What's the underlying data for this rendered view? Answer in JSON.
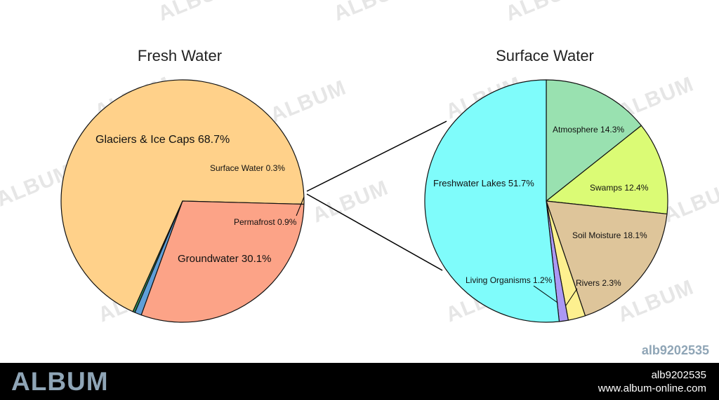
{
  "watermark": {
    "text": "ALBUM",
    "image_id": "alb9202535",
    "footer_logo": "ALBUM",
    "footer_id": "alb9202535",
    "footer_url": "www.album-online.com"
  },
  "colors": {
    "glaciers": "#ffd18a",
    "groundwater": "#fca387",
    "permafrost": "#5f9fd8",
    "surface_water": "#2e8b57",
    "freshwater_lakes": "#7ffcfb",
    "atmosphere": "#99e1b0",
    "swamps": "#dbfb75",
    "soil_moisture": "#dec59a",
    "rivers": "#fdf08f",
    "living_organisms": "#ab98f4"
  },
  "chart_data": [
    {
      "type": "pie",
      "title": "Fresh Water",
      "slices": [
        {
          "label": "Glaciers & Ice Caps",
          "value": 68.7,
          "text": "Glaciers & Ice Caps 68.7%",
          "color": "#ffd18a"
        },
        {
          "label": "Surface Water",
          "value": 0.3,
          "text": "Surface Water 0.3%",
          "color": "#2e8b57"
        },
        {
          "label": "Permafrost",
          "value": 0.9,
          "text": "Permafrost 0.9%",
          "color": "#5f9fd8"
        },
        {
          "label": "Groundwater",
          "value": 30.1,
          "text": "Groundwater 30.1%",
          "color": "#fca387"
        }
      ]
    },
    {
      "type": "pie",
      "title": "Surface Water",
      "slices": [
        {
          "label": "Atmosphere",
          "value": 14.3,
          "text": "Atmosphere 14.3%",
          "color": "#99e1b0"
        },
        {
          "label": "Swamps",
          "value": 12.4,
          "text": "Swamps 12.4%",
          "color": "#dbfb75"
        },
        {
          "label": "Soil Moisture",
          "value": 18.1,
          "text": "Soil Moisture 18.1%",
          "color": "#dec59a"
        },
        {
          "label": "Rivers",
          "value": 2.3,
          "text": "Rivers 2.3%",
          "color": "#fdf08f"
        },
        {
          "label": "Living Organisms",
          "value": 1.2,
          "text": "Living Organisms 1.2%",
          "color": "#ab98f4"
        },
        {
          "label": "Freshwater Lakes",
          "value": 51.7,
          "text": "Freshwater Lakes 51.7%",
          "color": "#7ffcfb"
        }
      ]
    }
  ]
}
